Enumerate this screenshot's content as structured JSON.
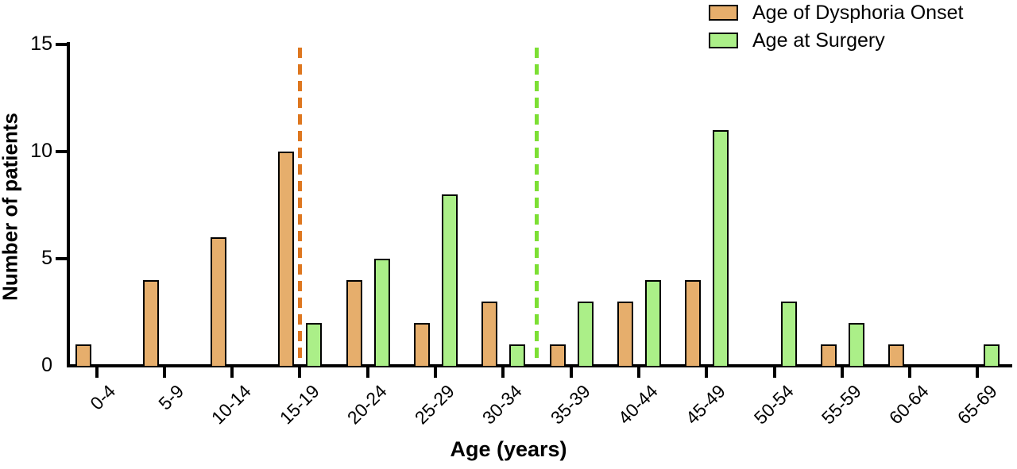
{
  "chart_data": {
    "type": "bar",
    "title": "",
    "xlabel": "Age (years)",
    "ylabel": "Number of patients",
    "ylim": [
      0,
      15
    ],
    "yticks": [
      0,
      5,
      10,
      15
    ],
    "grid": false,
    "legend_position": "top-right",
    "categories": [
      "0-4",
      "5-9",
      "10-14",
      "15-19",
      "20-24",
      "25-29",
      "30-34",
      "35-39",
      "40-44",
      "45-49",
      "50-54",
      "55-59",
      "60-64",
      "65-69"
    ],
    "series": [
      {
        "name": "Age of Dysphoria Onset",
        "color": "#E6AE6C",
        "values": [
          1,
          4,
          6,
          10,
          4,
          2,
          3,
          1,
          3,
          4,
          0,
          1,
          1,
          0
        ]
      },
      {
        "name": "Age at Surgery",
        "color": "#ABEF88",
        "values": [
          0,
          0,
          0,
          2,
          5,
          8,
          1,
          3,
          4,
          11,
          3,
          2,
          0,
          1
        ]
      }
    ],
    "reference_lines": [
      {
        "series": "Age of Dysphoria Onset",
        "style": "dashed",
        "color": "#DE771F",
        "at_category": "15-19"
      },
      {
        "series": "Age at Surgery",
        "style": "dashed",
        "color": "#7CDF33",
        "between_categories": [
          "30-34",
          "35-39"
        ]
      }
    ]
  }
}
